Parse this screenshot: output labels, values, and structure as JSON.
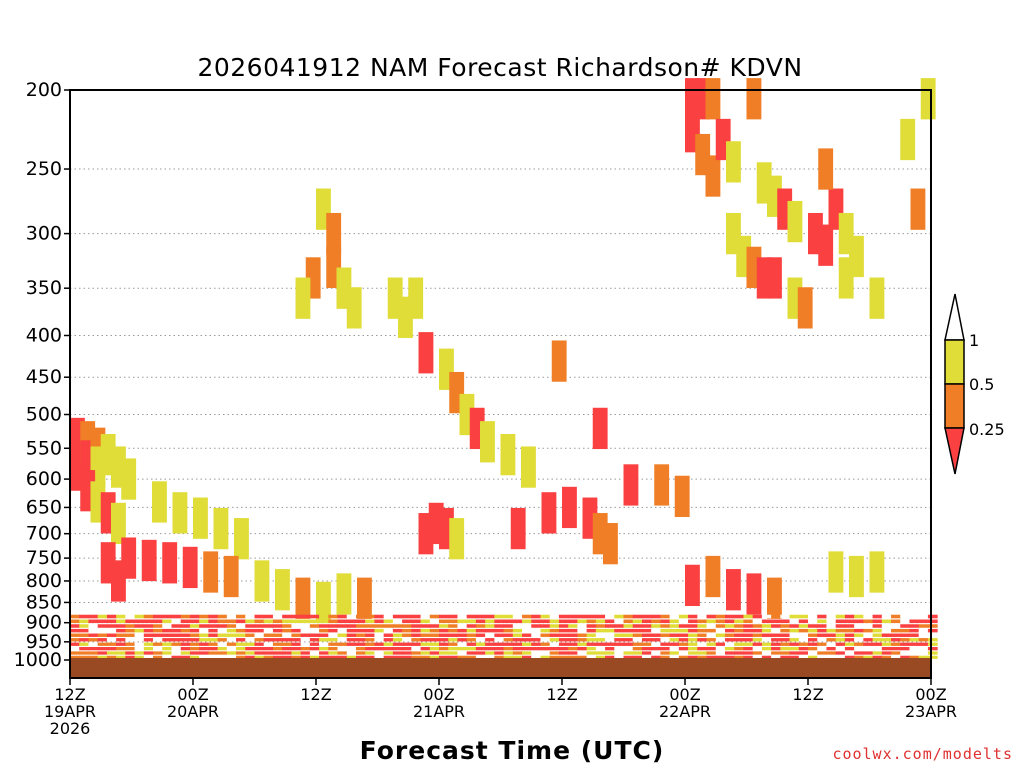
{
  "chart_data": {
    "type": "heatmap",
    "title": "2026041912 NAM Forecast Richardson# KDVN",
    "xlabel": "Forecast Time (UTC)",
    "ylabel": "",
    "credit": "coolwx.com/modelts",
    "x_range_hours": [
      0,
      84
    ],
    "y_range_hpa": [
      200,
      1000
    ],
    "y_ticks": [
      "200",
      "250",
      "300",
      "350",
      "400",
      "450",
      "500",
      "550",
      "600",
      "650",
      "700",
      "750",
      "800",
      "850",
      "900",
      "950",
      "1000"
    ],
    "x_ticks": [
      {
        "hour": 0,
        "line1": "12Z",
        "line2": "19APR",
        "line3": "2026"
      },
      {
        "hour": 12,
        "line1": "00Z",
        "line2": "20APR",
        "line3": ""
      },
      {
        "hour": 24,
        "line1": "12Z",
        "line2": "",
        "line3": ""
      },
      {
        "hour": 36,
        "line1": "00Z",
        "line2": "21APR",
        "line3": ""
      },
      {
        "hour": 48,
        "line1": "12Z",
        "line2": "",
        "line3": ""
      },
      {
        "hour": 60,
        "line1": "00Z",
        "line2": "22APR",
        "line3": ""
      },
      {
        "hour": 72,
        "line1": "12Z",
        "line2": "",
        "line3": ""
      },
      {
        "hour": 84,
        "line1": "00Z",
        "line2": "23APR",
        "line3": ""
      }
    ],
    "legend": {
      "labels": [
        "1",
        "0.5",
        "0.25"
      ],
      "bins": [
        {
          "range": ">1",
          "color": "#ffffff"
        },
        {
          "range": "0.5-1",
          "color": "#e0dc38"
        },
        {
          "range": "0.25-0.5",
          "color": "#f07e26"
        },
        {
          "range": "<0.25",
          "color": "#fa4040"
        }
      ]
    },
    "colors": {
      "yellow": "#e0dc38",
      "orange": "#f07e26",
      "red": "#fa4040",
      "ground": "#9a4a22"
    },
    "cells": [
      {
        "t": 0,
        "p": 535,
        "bin": "<0.25"
      },
      {
        "t": 0,
        "p": 560,
        "bin": "<0.25"
      },
      {
        "t": 0,
        "p": 585,
        "bin": "<0.25"
      },
      {
        "t": 1,
        "p": 540,
        "bin": "0.25-0.5"
      },
      {
        "t": 1,
        "p": 570,
        "bin": "<0.25"
      },
      {
        "t": 2,
        "p": 550,
        "bin": "0.25-0.5"
      },
      {
        "t": 2,
        "p": 580,
        "bin": "0.5-1"
      },
      {
        "t": 3,
        "p": 560,
        "bin": "0.5-1"
      },
      {
        "t": 4,
        "p": 580,
        "bin": "0.5-1"
      },
      {
        "t": 5,
        "p": 600,
        "bin": "0.5-1"
      },
      {
        "t": 1,
        "p": 620,
        "bin": "<0.25"
      },
      {
        "t": 2,
        "p": 640,
        "bin": "0.5-1"
      },
      {
        "t": 3,
        "p": 660,
        "bin": "<0.25"
      },
      {
        "t": 4,
        "p": 680,
        "bin": "0.5-1"
      },
      {
        "t": 8,
        "p": 640,
        "bin": "0.5-1"
      },
      {
        "t": 10,
        "p": 660,
        "bin": "0.5-1"
      },
      {
        "t": 12,
        "p": 670,
        "bin": "0.5-1"
      },
      {
        "t": 14,
        "p": 690,
        "bin": "0.5-1"
      },
      {
        "t": 16,
        "p": 710,
        "bin": "0.5-1"
      },
      {
        "t": 3,
        "p": 760,
        "bin": "<0.25"
      },
      {
        "t": 5,
        "p": 750,
        "bin": "<0.25"
      },
      {
        "t": 7,
        "p": 755,
        "bin": "<0.25"
      },
      {
        "t": 9,
        "p": 760,
        "bin": "<0.25"
      },
      {
        "t": 11,
        "p": 770,
        "bin": "<0.25"
      },
      {
        "t": 13,
        "p": 780,
        "bin": "0.25-0.5"
      },
      {
        "t": 15,
        "p": 790,
        "bin": "0.25-0.5"
      },
      {
        "t": 4,
        "p": 800,
        "bin": "<0.25"
      },
      {
        "t": 18,
        "p": 800,
        "bin": "0.5-1"
      },
      {
        "t": 20,
        "p": 820,
        "bin": "0.5-1"
      },
      {
        "t": 22,
        "p": 840,
        "bin": "0.25-0.5"
      },
      {
        "t": 24,
        "p": 850,
        "bin": "0.5-1"
      },
      {
        "t": 26,
        "p": 830,
        "bin": "0.5-1"
      },
      {
        "t": 28,
        "p": 840,
        "bin": "0.25-0.5"
      },
      {
        "t": 24,
        "p": 280,
        "bin": "0.5-1"
      },
      {
        "t": 25,
        "p": 300,
        "bin": "0.25-0.5"
      },
      {
        "t": 25,
        "p": 330,
        "bin": "0.25-0.5"
      },
      {
        "t": 26,
        "p": 350,
        "bin": "0.5-1"
      },
      {
        "t": 27,
        "p": 370,
        "bin": "0.5-1"
      },
      {
        "t": 23,
        "p": 340,
        "bin": "0.25-0.5"
      },
      {
        "t": 22,
        "p": 360,
        "bin": "0.5-1"
      },
      {
        "t": 31,
        "p": 360,
        "bin": "0.5-1"
      },
      {
        "t": 32,
        "p": 380,
        "bin": "0.5-1"
      },
      {
        "t": 33,
        "p": 360,
        "bin": "0.5-1"
      },
      {
        "t": 34,
        "p": 420,
        "bin": "<0.25"
      },
      {
        "t": 36,
        "p": 440,
        "bin": "0.5-1"
      },
      {
        "t": 37,
        "p": 470,
        "bin": "0.25-0.5"
      },
      {
        "t": 38,
        "p": 500,
        "bin": "0.5-1"
      },
      {
        "t": 39,
        "p": 520,
        "bin": "<0.25"
      },
      {
        "t": 40,
        "p": 540,
        "bin": "0.5-1"
      },
      {
        "t": 42,
        "p": 560,
        "bin": "0.5-1"
      },
      {
        "t": 44,
        "p": 580,
        "bin": "0.5-1"
      },
      {
        "t": 34,
        "p": 700,
        "bin": "<0.25"
      },
      {
        "t": 35,
        "p": 680,
        "bin": "<0.25"
      },
      {
        "t": 36,
        "p": 690,
        "bin": "<0.25"
      },
      {
        "t": 37,
        "p": 710,
        "bin": "0.5-1"
      },
      {
        "t": 43,
        "p": 690,
        "bin": "<0.25"
      },
      {
        "t": 46,
        "p": 660,
        "bin": "<0.25"
      },
      {
        "t": 48,
        "p": 650,
        "bin": "<0.25"
      },
      {
        "t": 50,
        "p": 670,
        "bin": "<0.25"
      },
      {
        "t": 51,
        "p": 700,
        "bin": "0.25-0.5"
      },
      {
        "t": 52,
        "p": 720,
        "bin": "0.25-0.5"
      },
      {
        "t": 47,
        "p": 430,
        "bin": "0.25-0.5"
      },
      {
        "t": 51,
        "p": 520,
        "bin": "<0.25"
      },
      {
        "t": 54,
        "p": 610,
        "bin": "<0.25"
      },
      {
        "t": 57,
        "p": 610,
        "bin": "0.25-0.5"
      },
      {
        "t": 59,
        "p": 630,
        "bin": "0.25-0.5"
      },
      {
        "t": 60,
        "p": 205,
        "bin": "<0.25"
      },
      {
        "t": 61,
        "p": 205,
        "bin": "<0.25"
      },
      {
        "t": 62,
        "p": 205,
        "bin": "0.25-0.5"
      },
      {
        "t": 60,
        "p": 225,
        "bin": "<0.25"
      },
      {
        "t": 61,
        "p": 240,
        "bin": "0.25-0.5"
      },
      {
        "t": 62,
        "p": 255,
        "bin": "0.25-0.5"
      },
      {
        "t": 63,
        "p": 230,
        "bin": "<0.25"
      },
      {
        "t": 64,
        "p": 245,
        "bin": "0.5-1"
      },
      {
        "t": 66,
        "p": 205,
        "bin": "0.25-0.5"
      },
      {
        "t": 67,
        "p": 260,
        "bin": "0.5-1"
      },
      {
        "t": 68,
        "p": 270,
        "bin": "0.5-1"
      },
      {
        "t": 69,
        "p": 280,
        "bin": "<0.25"
      },
      {
        "t": 70,
        "p": 290,
        "bin": "0.5-1"
      },
      {
        "t": 72,
        "p": 300,
        "bin": "<0.25"
      },
      {
        "t": 73,
        "p": 310,
        "bin": "<0.25"
      },
      {
        "t": 74,
        "p": 280,
        "bin": "<0.25"
      },
      {
        "t": 75,
        "p": 300,
        "bin": "0.5-1"
      },
      {
        "t": 76,
        "p": 320,
        "bin": "0.5-1"
      },
      {
        "t": 73,
        "p": 250,
        "bin": "0.25-0.5"
      },
      {
        "t": 64,
        "p": 300,
        "bin": "0.5-1"
      },
      {
        "t": 65,
        "p": 320,
        "bin": "0.5-1"
      },
      {
        "t": 66,
        "p": 330,
        "bin": "0.25-0.5"
      },
      {
        "t": 67,
        "p": 340,
        "bin": "<0.25"
      },
      {
        "t": 68,
        "p": 340,
        "bin": "<0.25"
      },
      {
        "t": 70,
        "p": 360,
        "bin": "0.5-1"
      },
      {
        "t": 71,
        "p": 370,
        "bin": "0.25-0.5"
      },
      {
        "t": 75,
        "p": 340,
        "bin": "0.5-1"
      },
      {
        "t": 83,
        "p": 205,
        "bin": "0.5-1"
      },
      {
        "t": 81,
        "p": 230,
        "bin": "0.5-1"
      },
      {
        "t": 82,
        "p": 280,
        "bin": "0.25-0.5"
      },
      {
        "t": 78,
        "p": 360,
        "bin": "0.5-1"
      },
      {
        "t": 60,
        "p": 810,
        "bin": "<0.25"
      },
      {
        "t": 62,
        "p": 790,
        "bin": "0.25-0.5"
      },
      {
        "t": 64,
        "p": 820,
        "bin": "<0.25"
      },
      {
        "t": 66,
        "p": 830,
        "bin": "<0.25"
      },
      {
        "t": 68,
        "p": 840,
        "bin": "0.25-0.5"
      },
      {
        "t": 74,
        "p": 780,
        "bin": "0.5-1"
      },
      {
        "t": 76,
        "p": 790,
        "bin": "0.5-1"
      },
      {
        "t": 78,
        "p": 780,
        "bin": "0.5-1"
      }
    ]
  }
}
